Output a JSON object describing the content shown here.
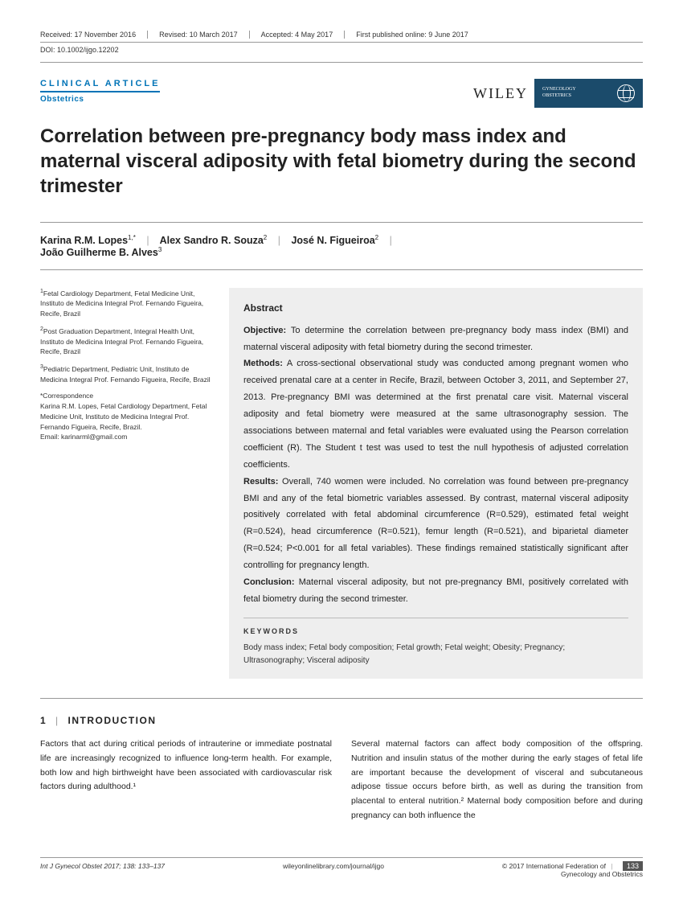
{
  "meta": {
    "received": "Received: 17 November 2016",
    "revised": "Revised: 10 March 2017",
    "accepted": "Accepted: 4 May 2017",
    "first_published": "First published online: 9 June 2017",
    "doi": "DOI: 10.1002/ijgo.12202"
  },
  "articleType": "CLINICAL ARTICLE",
  "subcategory": "Obstetrics",
  "publisher": "WILEY",
  "journalBadge": {
    "line1": "GYNECOLOGY",
    "line2": "OBSTETRICS"
  },
  "title": "Correlation between pre-pregnancy body mass index and maternal visceral adiposity with fetal biometry during the second trimester",
  "authors": {
    "a1": "Karina R.M. Lopes",
    "a1sup": "1,*",
    "a2": "Alex Sandro R. Souza",
    "a2sup": "2",
    "a3": "José N. Figueiroa",
    "a3sup": "2",
    "a4": "João Guilherme B. Alves",
    "a4sup": "3"
  },
  "affiliations": {
    "a1": "Fetal Cardiology Department, Fetal Medicine Unit, Instituto de Medicina Integral Prof. Fernando Figueira, Recife, Brazil",
    "a2": "Post Graduation Department, Integral Health Unit, Instituto de Medicina Integral Prof. Fernando Figueira, Recife, Brazil",
    "a3": "Pediatric Department, Pediatric Unit, Instituto de Medicina Integral Prof. Fernando Figueira, Recife, Brazil",
    "corrLabel": "*Correspondence",
    "corr": "Karina R.M. Lopes, Fetal Cardiology Department, Fetal Medicine Unit, Instituto de Medicina Integral Prof. Fernando Figueira, Recife, Brazil.",
    "email": "Email: karinarml@gmail.com"
  },
  "abstract": {
    "heading": "Abstract",
    "objectiveLabel": "Objective:",
    "objective": " To determine the correlation between pre-pregnancy body mass index (BMI) and maternal visceral adiposity with fetal biometry during the second trimester.",
    "methodsLabel": "Methods:",
    "methods": " A cross-sectional observational study was conducted among pregnant women who received prenatal care at a center in Recife, Brazil, between October 3, 2011, and September 27, 2013. Pre-pregnancy BMI was determined at the first prenatal care visit. Maternal visceral adiposity and fetal biometry were measured at the same ultrasonography session. The associations between maternal and fetal variables were evaluated using the Pearson correlation coefficient (R). The Student t test was used to test the null hypothesis of adjusted correlation coefficients.",
    "resultsLabel": "Results:",
    "results": " Overall, 740 women were included. No correlation was found between pre-pregnancy BMI and any of the fetal biometric variables assessed. By contrast, maternal visceral adiposity positively correlated with fetal abdominal circumference (R=0.529), estimated fetal weight (R=0.524), head circumference (R=0.521), femur length (R=0.521), and biparietal diameter (R=0.524; P<0.001 for all fetal variables). These findings remained statistically significant after controlling for pregnancy length.",
    "conclusionLabel": "Conclusion:",
    "conclusion": " Maternal visceral adiposity, but not pre-pregnancy BMI, positively correlated with fetal biometry during the second trimester.",
    "keywordsLabel": "KEYWORDS",
    "keywords": "Body mass index; Fetal body composition; Fetal growth; Fetal weight; Obesity; Pregnancy; Ultrasonography; Visceral adiposity"
  },
  "section": {
    "num": "1",
    "title": "INTRODUCTION"
  },
  "intro": {
    "c1": "Factors that act during critical periods of intrauterine or immediate postnatal life are increasingly recognized to influence long-term health. For example, both low and high birthweight have been associated with cardiovascular risk factors during adulthood.¹",
    "c2": "Several maternal factors can affect body composition of the offspring. Nutrition and insulin status of the mother during the early stages of fetal life are important because the development of visceral and subcutaneous adipose tissue occurs before birth, as well as during the transition from placental to enteral nutrition.² Maternal body composition before and during pregnancy can both influence the"
  },
  "footer": {
    "citation": "Int J Gynecol Obstet 2017; 138: 133–137",
    "url": "wileyonlinelibrary.com/journal/ijgo",
    "copyright1": "© 2017 International Federation of",
    "copyright2": "Gynecology and Obstetrics",
    "page": "133"
  }
}
